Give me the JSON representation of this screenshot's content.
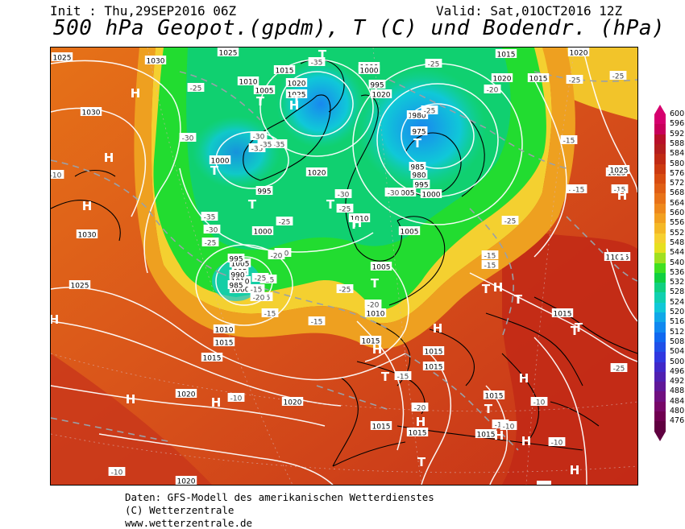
{
  "header": {
    "init": "Init : Thu,29SEP2016 06Z",
    "valid": "Valid: Sat,01OCT2016 12Z",
    "title": "500 hPa Geopot.(gpdm), T (C) und Bodendr. (hPa)"
  },
  "footer": {
    "line1": "Daten: GFS-Modell des amerikanischen Wetterdienstes",
    "line2": "(C) Wetterzentrale",
    "line3": "www.wetterzentrale.de"
  },
  "colorscale": {
    "labels": [
      "600",
      "596",
      "592",
      "588",
      "584",
      "580",
      "576",
      "572",
      "568",
      "564",
      "560",
      "556",
      "552",
      "548",
      "544",
      "540",
      "536",
      "532",
      "528",
      "524",
      "520",
      "516",
      "512",
      "508",
      "504",
      "500",
      "496",
      "492",
      "488",
      "484",
      "480",
      "476"
    ],
    "colors": [
      "#d6006e",
      "#c8005a",
      "#b8102a",
      "#b41e1e",
      "#c02a14",
      "#cc3a10",
      "#d84c10",
      "#e05e14",
      "#e87218",
      "#ee881c",
      "#f2a020",
      "#f4b826",
      "#f6d030",
      "#e6e020",
      "#a0e020",
      "#40e020",
      "#10d040",
      "#10d080",
      "#10d0b0",
      "#10c8d8",
      "#10a8e8",
      "#1088f0",
      "#1068f0",
      "#2050e8",
      "#3038e0",
      "#4028c8",
      "#5020b0",
      "#601898",
      "#701080",
      "#780868",
      "#700050",
      "#600040"
    ]
  },
  "map": {
    "pressure_labels": [
      "1025",
      "1030",
      "1025",
      "1015",
      "1020",
      "1015",
      "1010",
      "1015",
      "1005",
      "1000",
      "1020",
      "1025",
      "1000",
      "995",
      "1010",
      "1030",
      "1000",
      "995",
      "1020",
      "980",
      "975",
      "1005",
      "985",
      "1030",
      "1010",
      "980",
      "995",
      "1000",
      "1025",
      "995",
      "1010",
      "1005",
      "1000",
      "1000",
      "995",
      "990",
      "985",
      "1005",
      "1005",
      "1010",
      "1010",
      "1015",
      "1015",
      "1015",
      "1015",
      "1015",
      "1025",
      "1020",
      "1020",
      "1015",
      "1015",
      "1015",
      "1015",
      "1020",
      "1020",
      "1020",
      "1025",
      "1015",
      "1015",
      "1015"
    ],
    "temp_labels": [
      "-35",
      "-25",
      "-25",
      "-25",
      "-25",
      "-30",
      "-30",
      "-35",
      "-35",
      "-30",
      "-30",
      "-25",
      "-25",
      "-35",
      "-10",
      "-35",
      "-30",
      "-25",
      "-25",
      "-20",
      "-20",
      "-15",
      "-15",
      "-15",
      "-15",
      "-15",
      "-15",
      "-15",
      "-20",
      "-15",
      "-20",
      "-10",
      "-10",
      "-10",
      "-10",
      "-10",
      "-15",
      "-25",
      "-15",
      "-15",
      "-20",
      "-10",
      "-10",
      "-25",
      "-15",
      "-25",
      "-20",
      "-25",
      "-25"
    ],
    "high_letter": "H",
    "low_letter": "T"
  }
}
